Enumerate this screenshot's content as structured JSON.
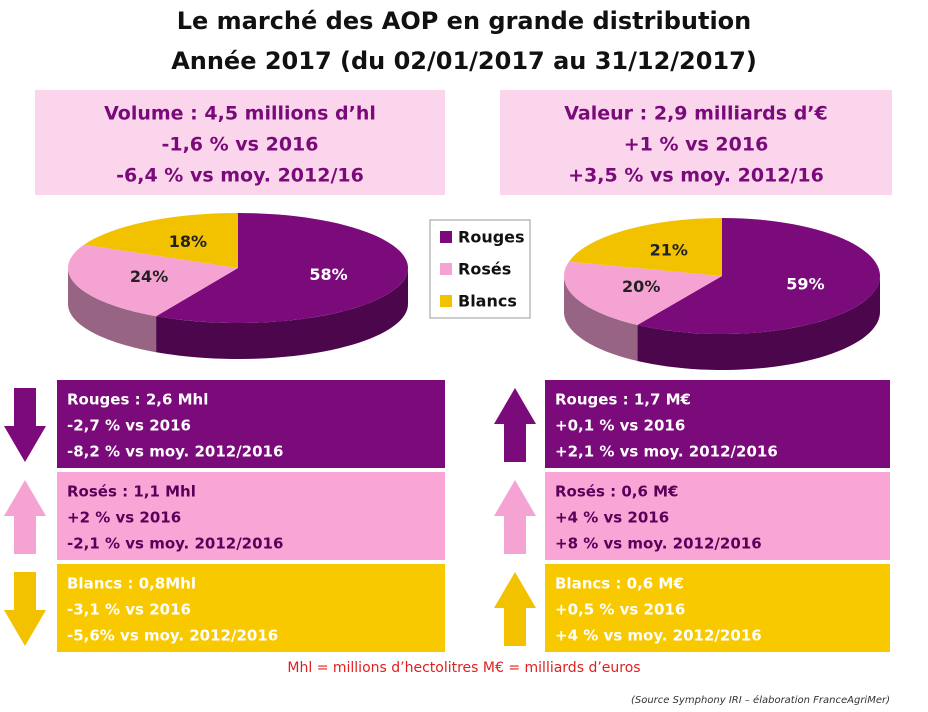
{
  "title": [
    "Le marché des AOP en grande distribution",
    "Année 2017 (du 02/01/2017 au 31/12/2017)"
  ],
  "summary": [
    [
      "Volume : 4,5 millions d’hl",
      "-1,6 % vs 2016",
      "-6,4 % vs moy. 2012/16"
    ],
    [
      "Valeur : 2,9 milliards d’€",
      "+1 % vs 2016",
      "+3,5 % vs moy. 2012/16"
    ]
  ],
  "chart_data": [
    {
      "type": "pie",
      "categories": [
        "Rouges",
        "Rosés",
        "Blancs"
      ],
      "values": [
        58,
        24,
        18
      ],
      "value_labels": [
        "58%",
        "24%",
        "18%"
      ],
      "colors": [
        "#7b0a7b",
        "#f4a3d3",
        "#f2c200"
      ]
    },
    {
      "type": "pie",
      "values": [
        59,
        20,
        21
      ],
      "value_labels": [
        "59%",
        "20%",
        "21%"
      ],
      "colors": [
        "#7b0a7b",
        "#f4a3d3",
        "#f2c200"
      ]
    }
  ],
  "details": [
    [
      [
        "Rouges : 2,6 Mhl",
        "-2,7 % vs 2016",
        "-8,2 % vs moy. 2012/2016"
      ],
      [
        "Rosés : 1,1 Mhl",
        "+2 % vs 2016",
        "-2,1 % vs moy. 2012/2016"
      ],
      [
        "Blancs : 0,8Mhl",
        "-3,1 % vs 2016",
        "-5,6% vs moy. 2012/2016"
      ]
    ],
    [
      [
        "Rouges : 1,7 M€",
        "+0,1 % vs 2016",
        "+2,1 % vs moy. 2012/2016"
      ],
      [
        "Rosés : 0,6 M€",
        "+4 % vs 2016",
        "+8 % vs moy. 2012/2016"
      ],
      [
        "Blancs : 0,6 M€",
        "+0,5 % vs 2016",
        "+4 % vs moy. 2012/2016"
      ]
    ]
  ],
  "footnote": "Mhl = millions d’hectolitres  M€ = milliards d’euros",
  "source": "(Source Symphony IRI – élaboration FranceAgriMer)"
}
